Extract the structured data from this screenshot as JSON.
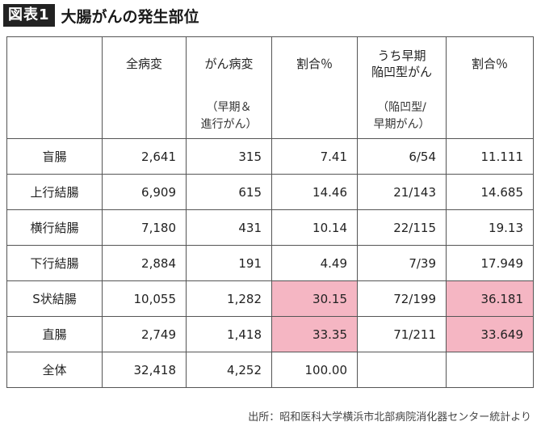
{
  "header": {
    "label": "図表1",
    "title": "大腸がんの発生部位"
  },
  "table": {
    "columns": [
      {
        "label": "",
        "sub": ""
      },
      {
        "label": "全病変",
        "sub": ""
      },
      {
        "label": "がん病変",
        "sub": "（早期＆\n進行がん）"
      },
      {
        "label": "割合％",
        "sub": ""
      },
      {
        "label": "うち早期\n陥凹型がん",
        "sub": "（陥凹型/\n早期がん）"
      },
      {
        "label": "割合％",
        "sub": ""
      }
    ],
    "rows": [
      {
        "name": "盲腸",
        "total": "2,641",
        "cancer": "315",
        "ratio": "7.41",
        "depressed": "6/54",
        "ratio2": "11.111",
        "highlight": false
      },
      {
        "name": "上行結腸",
        "total": "6,909",
        "cancer": "615",
        "ratio": "14.46",
        "depressed": "21/143",
        "ratio2": "14.685",
        "highlight": false
      },
      {
        "name": "横行結腸",
        "total": "7,180",
        "cancer": "431",
        "ratio": "10.14",
        "depressed": "22/115",
        "ratio2": "19.13",
        "highlight": false
      },
      {
        "name": "下行結腸",
        "total": "2,884",
        "cancer": "191",
        "ratio": "4.49",
        "depressed": "7/39",
        "ratio2": "17.949",
        "highlight": false
      },
      {
        "name": "S状結腸",
        "total": "10,055",
        "cancer": "1,282",
        "ratio": "30.15",
        "depressed": "72/199",
        "ratio2": "36.181",
        "highlight": true
      },
      {
        "name": "直腸",
        "total": "2,749",
        "cancer": "1,418",
        "ratio": "33.35",
        "depressed": "71/211",
        "ratio2": "33.649",
        "highlight": true
      },
      {
        "name": "全体",
        "total": "32,418",
        "cancer": "4,252",
        "ratio": "100.00",
        "depressed": "",
        "ratio2": "",
        "highlight": false
      }
    ]
  },
  "colors": {
    "highlight": "#f5b6c3",
    "label_bg": "#222222"
  },
  "source": "出所：昭和医科大学横浜市北部病院消化器センター統計より"
}
